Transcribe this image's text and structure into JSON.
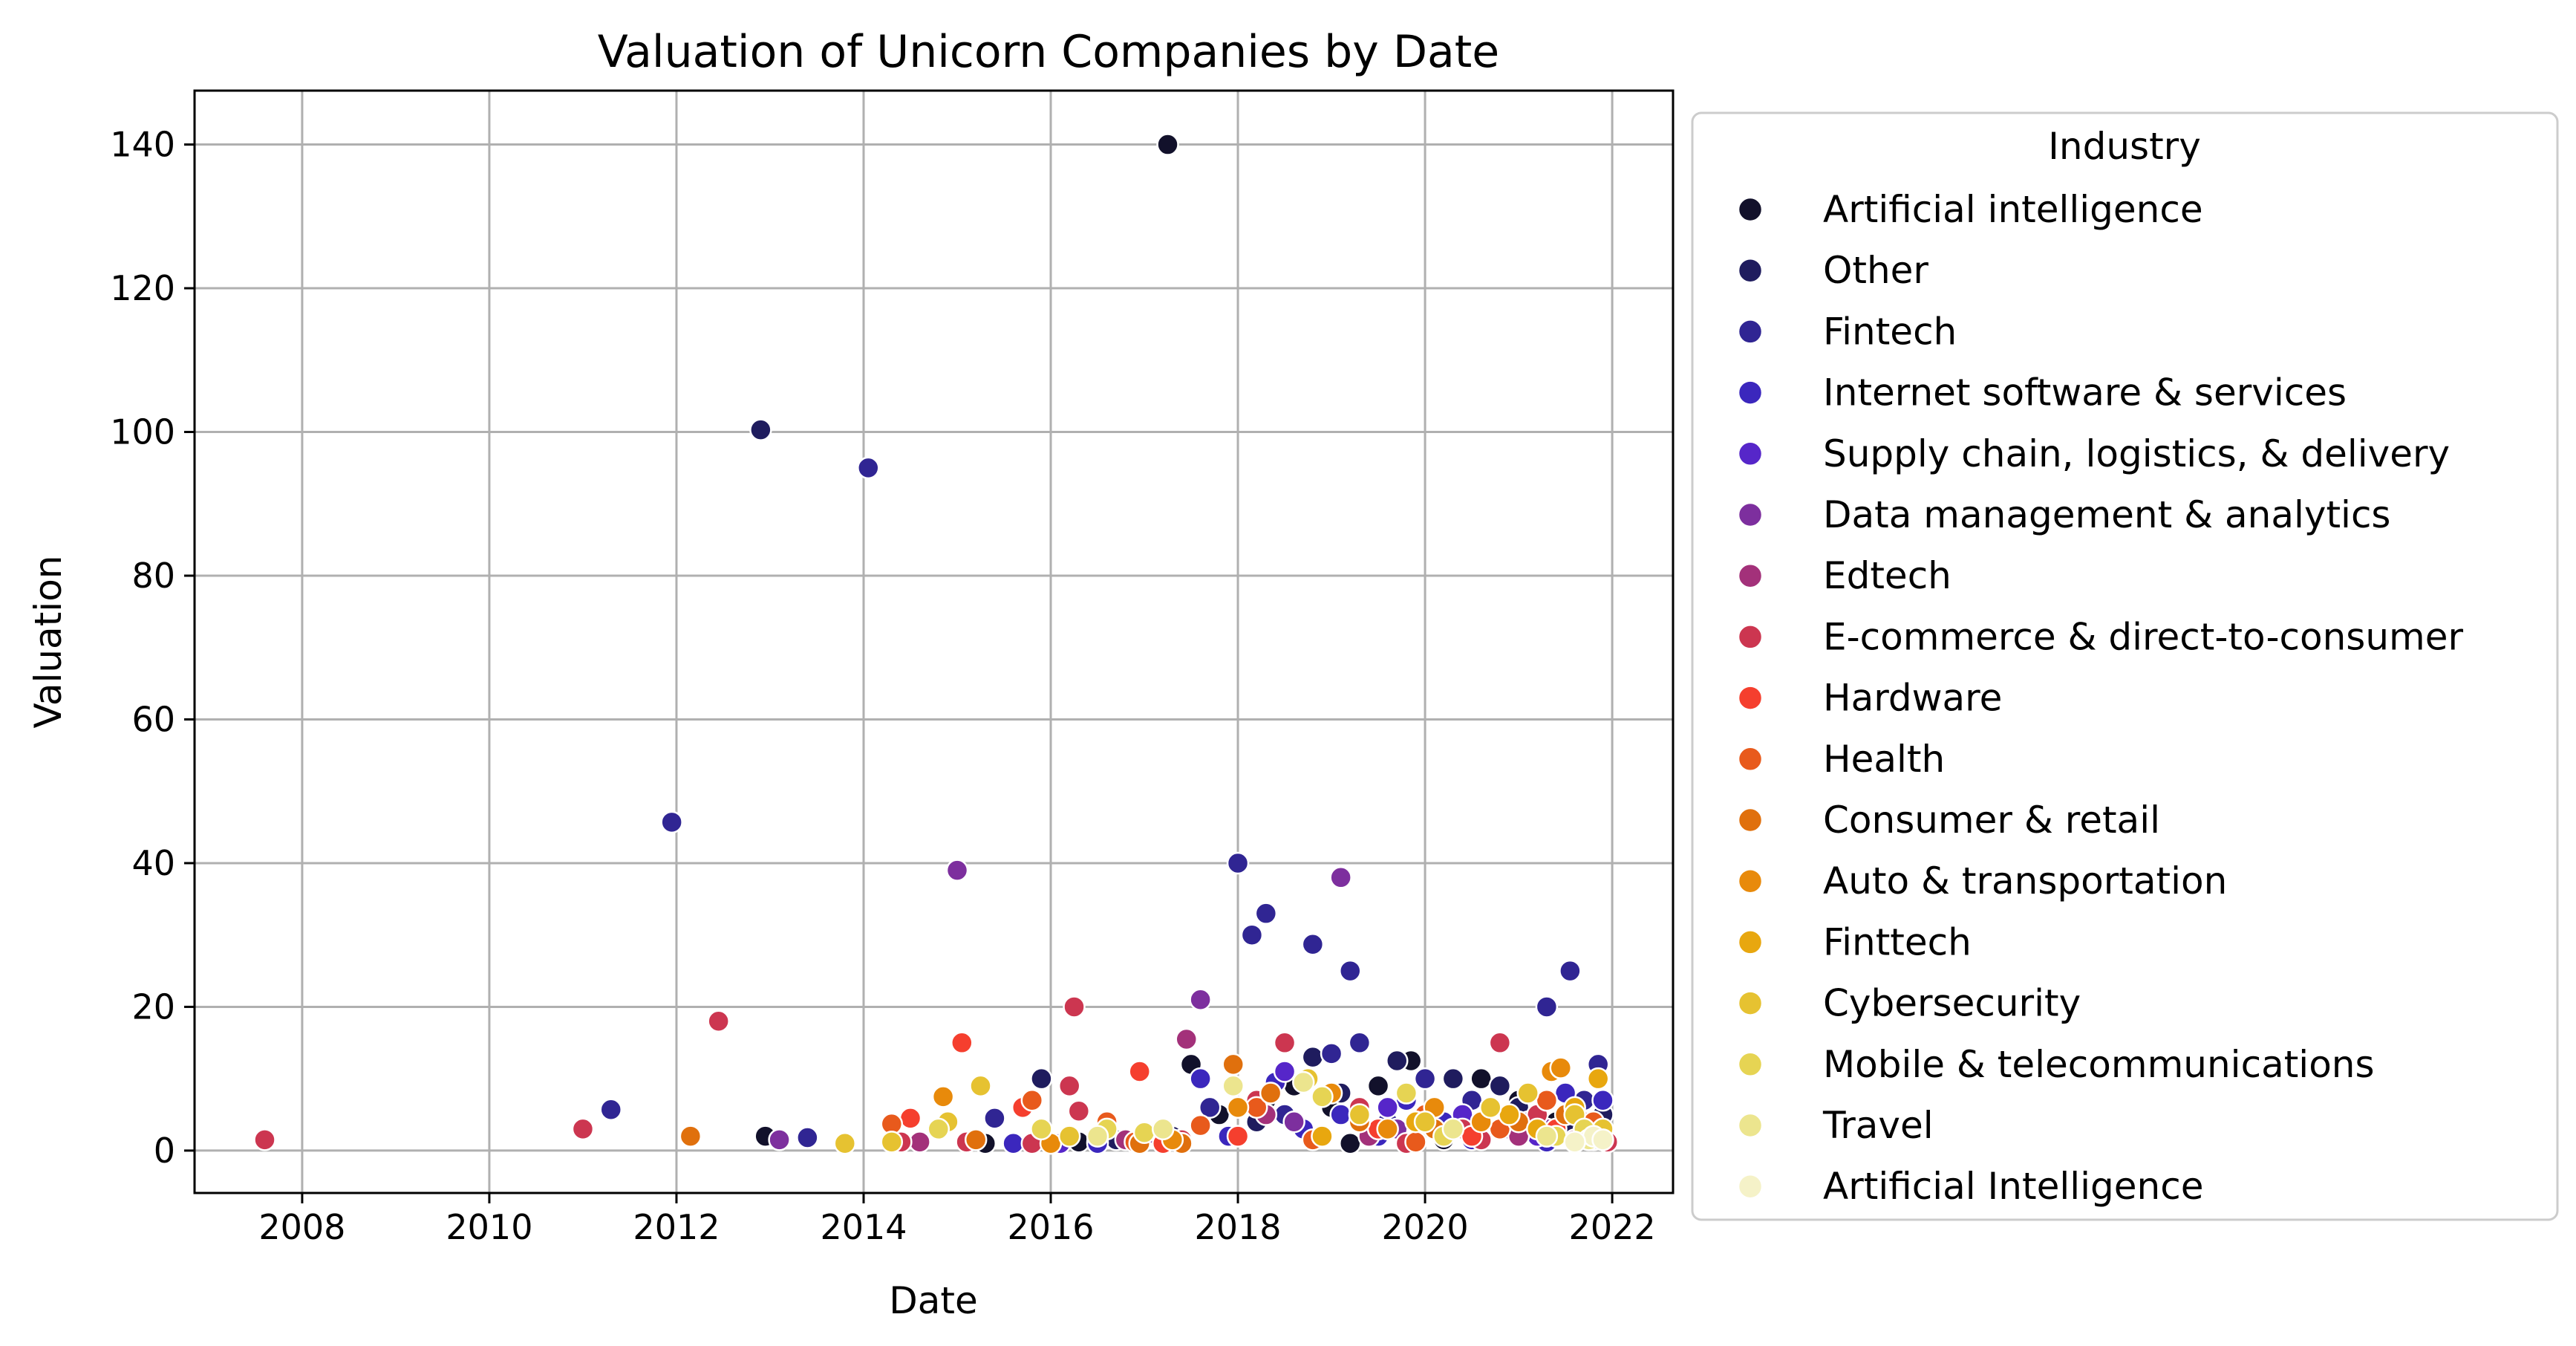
{
  "chart_data": {
    "type": "scatter",
    "title": "Valuation of Unicorn Companies by Date",
    "xlabel": "Date",
    "ylabel": "Valuation",
    "xlim": [
      2006.85,
      2022.65
    ],
    "ylim": [
      -5.9,
      147.5
    ],
    "x_ticks": [
      2008,
      2010,
      2012,
      2014,
      2016,
      2018,
      2020,
      2022
    ],
    "y_ticks": [
      0,
      20,
      40,
      60,
      80,
      100,
      120,
      140
    ],
    "grid": true,
    "legend": {
      "title": "Industry",
      "placement": "right-outside"
    },
    "series": [
      {
        "name": "Artificial intelligence",
        "color": "#12112b",
        "points": [
          [
            2012.95,
            2
          ],
          [
            2016.3,
            1.2
          ],
          [
            2017.25,
            140
          ],
          [
            2017.5,
            12
          ],
          [
            2017.8,
            5
          ],
          [
            2018.3,
            7
          ],
          [
            2018.6,
            9
          ],
          [
            2019.0,
            6
          ],
          [
            2019.5,
            9
          ],
          [
            2019.85,
            12.5
          ],
          [
            2020.6,
            10
          ],
          [
            2021.0,
            7
          ],
          [
            2021.4,
            4
          ],
          [
            2021.8,
            3
          ],
          [
            2019.2,
            1
          ],
          [
            2020.2,
            1.5
          ],
          [
            2015.3,
            1
          ],
          [
            2021.6,
            1.5
          ]
        ]
      },
      {
        "name": "Other",
        "color": "#1f1c5e",
        "points": [
          [
            2012.9,
            100.3
          ],
          [
            2015.9,
            10
          ],
          [
            2018.8,
            13
          ],
          [
            2019.1,
            8
          ],
          [
            2020.3,
            10
          ],
          [
            2021.0,
            6
          ],
          [
            2021.9,
            5
          ],
          [
            2019.7,
            12.5
          ],
          [
            2018.2,
            4
          ],
          [
            2017.3,
            2
          ],
          [
            2016.7,
            1.5
          ],
          [
            2020.8,
            9
          ],
          [
            2021.5,
            3
          ]
        ]
      },
      {
        "name": "Fintech",
        "color": "#302593",
        "points": [
          [
            2011.95,
            45.7
          ],
          [
            2014.05,
            95
          ],
          [
            2018.0,
            40
          ],
          [
            2018.15,
            30
          ],
          [
            2018.3,
            33
          ],
          [
            2018.8,
            28.7
          ],
          [
            2019.2,
            25
          ],
          [
            2019.3,
            15
          ],
          [
            2021.55,
            25
          ],
          [
            2021.3,
            20
          ],
          [
            2021.85,
            12
          ],
          [
            2019.0,
            13.5
          ],
          [
            2020.0,
            10
          ],
          [
            2020.5,
            7
          ],
          [
            2013.4,
            1.8
          ],
          [
            2011.3,
            5.7
          ],
          [
            2015.4,
            4.5
          ],
          [
            2017.7,
            6
          ],
          [
            2018.5,
            5
          ],
          [
            2019.6,
            4
          ],
          [
            2020.9,
            3
          ],
          [
            2021.7,
            7
          ],
          [
            2016.5,
            1.2
          ]
        ]
      },
      {
        "name": "Internet software & services",
        "color": "#3b27bd",
        "points": [
          [
            2017.6,
            10
          ],
          [
            2018.4,
            9.5
          ],
          [
            2019.1,
            5
          ],
          [
            2019.8,
            7
          ],
          [
            2020.2,
            4
          ],
          [
            2020.7,
            6
          ],
          [
            2021.1,
            4
          ],
          [
            2021.5,
            8
          ],
          [
            2021.9,
            7
          ],
          [
            2016.5,
            1
          ],
          [
            2017.9,
            2
          ],
          [
            2018.7,
            3
          ],
          [
            2019.5,
            2
          ],
          [
            2020.5,
            1.5
          ],
          [
            2021.3,
            1.2
          ],
          [
            2015.6,
            1
          ]
        ]
      },
      {
        "name": "Supply chain, logistics, & delivery",
        "color": "#5626c9",
        "points": [
          [
            2018.5,
            11
          ],
          [
            2019.6,
            6
          ],
          [
            2020.4,
            5
          ],
          [
            2020.9,
            4
          ],
          [
            2021.2,
            2
          ],
          [
            2021.7,
            3
          ],
          [
            2017.2,
            1.5
          ],
          [
            2016.1,
            1
          ],
          [
            2021.9,
            2
          ]
        ]
      },
      {
        "name": "Data management & analytics",
        "color": "#7d2f9e",
        "points": [
          [
            2015.0,
            39
          ],
          [
            2019.1,
            38
          ],
          [
            2017.6,
            21
          ],
          [
            2013.1,
            1.5
          ],
          [
            2018.6,
            4
          ],
          [
            2019.7,
            3
          ],
          [
            2020.5,
            2
          ],
          [
            2021.3,
            3
          ],
          [
            2021.8,
            1.5
          ],
          [
            2017.0,
            2
          ]
        ]
      },
      {
        "name": "Edtech",
        "color": "#a3317a",
        "points": [
          [
            2017.45,
            15.5
          ],
          [
            2014.6,
            1.2
          ],
          [
            2018.3,
            5
          ],
          [
            2020.1,
            3
          ],
          [
            2021.0,
            2
          ],
          [
            2021.6,
            1.5
          ],
          [
            2019.4,
            2
          ],
          [
            2016.8,
            1.5
          ]
        ]
      },
      {
        "name": "E-commerce & direct-to-consumer",
        "color": "#cc3650",
        "points": [
          [
            2007.6,
            1.5
          ],
          [
            2011.0,
            3
          ],
          [
            2012.45,
            18
          ],
          [
            2016.25,
            20
          ],
          [
            2016.2,
            9
          ],
          [
            2016.3,
            5.5
          ],
          [
            2018.5,
            15
          ],
          [
            2020.8,
            15
          ],
          [
            2014.4,
            1.2
          ],
          [
            2015.1,
            1.2
          ],
          [
            2015.8,
            1
          ],
          [
            2017.4,
            1.5
          ],
          [
            2018.2,
            7
          ],
          [
            2019.3,
            6
          ],
          [
            2019.9,
            4
          ],
          [
            2020.4,
            3
          ],
          [
            2021.2,
            5
          ],
          [
            2021.7,
            4
          ],
          [
            2021.95,
            1.2
          ],
          [
            2019.8,
            1
          ],
          [
            2020.6,
            1.5
          ]
        ]
      },
      {
        "name": "Hardware",
        "color": "#f53f2e",
        "points": [
          [
            2015.05,
            15
          ],
          [
            2016.95,
            11
          ],
          [
            2015.7,
            6
          ],
          [
            2014.5,
            4.5
          ],
          [
            2018.0,
            2
          ],
          [
            2019.5,
            3
          ],
          [
            2020.5,
            2
          ],
          [
            2021.4,
            3
          ],
          [
            2017.2,
            1
          ]
        ]
      },
      {
        "name": "Health",
        "color": "#e85a1c",
        "points": [
          [
            2014.3,
            3.7
          ],
          [
            2015.8,
            7
          ],
          [
            2016.6,
            4
          ],
          [
            2017.6,
            3.5
          ],
          [
            2018.2,
            6
          ],
          [
            2019.3,
            4
          ],
          [
            2020.0,
            5
          ],
          [
            2020.8,
            3
          ],
          [
            2021.3,
            7
          ],
          [
            2021.8,
            4
          ],
          [
            2018.8,
            1.5
          ],
          [
            2019.9,
            1.2
          ],
          [
            2016.9,
            1.2
          ]
        ]
      },
      {
        "name": "Consumer & retail",
        "color": "#e0700d",
        "points": [
          [
            2012.15,
            2
          ],
          [
            2017.95,
            12
          ],
          [
            2018.35,
            8
          ],
          [
            2019.3,
            4
          ],
          [
            2020.1,
            3
          ],
          [
            2021.0,
            4
          ],
          [
            2021.5,
            5
          ],
          [
            2016.95,
            1
          ],
          [
            2015.2,
            1.5
          ],
          [
            2017.4,
            1
          ]
        ]
      },
      {
        "name": "Auto & transportation",
        "color": "#e88a0b",
        "points": [
          [
            2014.85,
            7.5
          ],
          [
            2016.0,
            1
          ],
          [
            2018.0,
            6
          ],
          [
            2019.0,
            8
          ],
          [
            2020.1,
            6
          ],
          [
            2021.35,
            11
          ],
          [
            2021.45,
            11.5
          ],
          [
            2020.6,
            4
          ],
          [
            2019.6,
            3
          ],
          [
            2017.3,
            1.5
          ]
        ]
      },
      {
        "name": "Finttech",
        "color": "#e8a70f",
        "points": [
          [
            2021.85,
            10
          ],
          [
            2021.6,
            6
          ],
          [
            2020.9,
            5
          ],
          [
            2019.9,
            4
          ],
          [
            2018.9,
            2
          ],
          [
            2021.2,
            3
          ]
        ]
      },
      {
        "name": "Cybersecurity",
        "color": "#e6c231",
        "points": [
          [
            2013.8,
            1
          ],
          [
            2014.9,
            4
          ],
          [
            2015.25,
            9
          ],
          [
            2018.75,
            10
          ],
          [
            2019.3,
            5
          ],
          [
            2020.0,
            4
          ],
          [
            2020.7,
            6
          ],
          [
            2021.1,
            8
          ],
          [
            2021.6,
            5
          ],
          [
            2021.9,
            3
          ],
          [
            2016.2,
            2
          ],
          [
            2014.3,
            1.2
          ]
        ]
      },
      {
        "name": "Mobile & telecommunications",
        "color": "#e6d453",
        "points": [
          [
            2014.8,
            3
          ],
          [
            2015.9,
            3
          ],
          [
            2018.9,
            7.5
          ],
          [
            2019.8,
            8
          ],
          [
            2020.2,
            2
          ],
          [
            2021.4,
            2
          ],
          [
            2021.7,
            3
          ],
          [
            2017.0,
            2.5
          ],
          [
            2016.6,
            3
          ]
        ]
      },
      {
        "name": "Travel",
        "color": "#ece58e",
        "points": [
          [
            2017.95,
            9
          ],
          [
            2018.7,
            9.5
          ],
          [
            2020.3,
            3
          ],
          [
            2021.3,
            2
          ],
          [
            2021.75,
            1.5
          ],
          [
            2017.2,
            3
          ],
          [
            2016.5,
            2
          ]
        ]
      },
      {
        "name": "Artificial Intelligence",
        "color": "#f5f2c8",
        "points": [
          [
            2021.8,
            2
          ],
          [
            2021.6,
            1.2
          ],
          [
            2021.9,
            1.5
          ]
        ]
      }
    ]
  }
}
